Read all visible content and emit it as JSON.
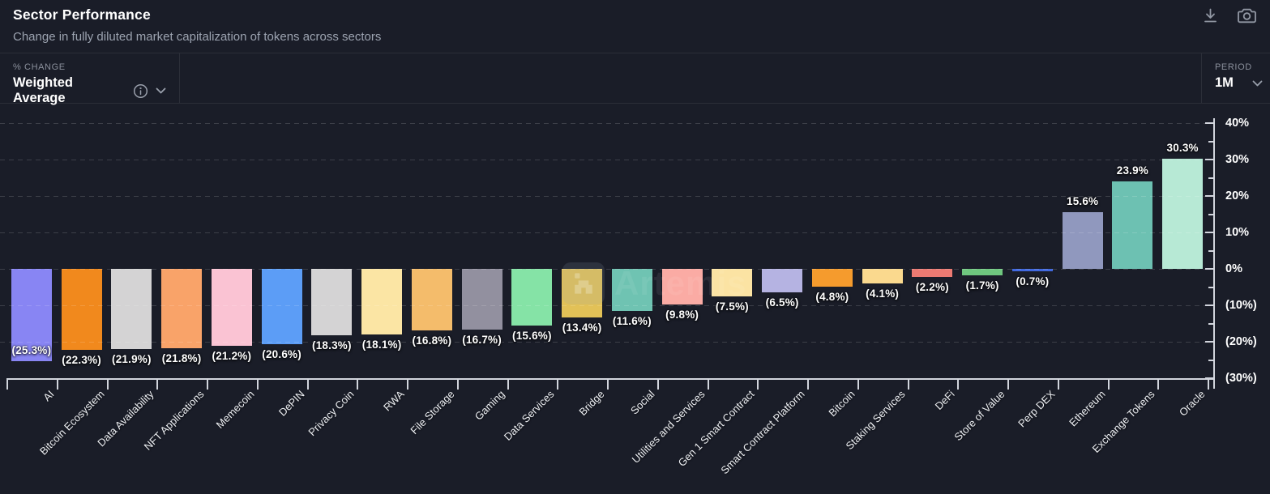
{
  "header": {
    "title": "Sector Performance",
    "subtitle": "Change in fully diluted market capitalization of tokens across sectors",
    "icons": [
      "download-icon",
      "camera-icon"
    ]
  },
  "controls": {
    "metric_label": "% CHANGE",
    "metric_value": "Weighted Average",
    "metric_icons": [
      "info-icon",
      "chevron-down-icon"
    ],
    "period_label": "PERIOD",
    "period_value": "1M",
    "period_icons": [
      "chevron-down-icon"
    ]
  },
  "watermark": {
    "text": "Artemis",
    "logo": "artemis-arch-logo"
  },
  "theme": {
    "background": "#1A1D28",
    "text_primary": "#FFFFFF",
    "text_secondary": "#9CA3B0",
    "border": "rgba(255,255,255,0.08)",
    "axis": "#D2D5DD",
    "gridline_opacity": 0.15
  },
  "chart_data": {
    "type": "bar",
    "title": "Sector Performance",
    "xlabel": "",
    "ylabel": "% change",
    "ylim": [
      -30,
      40
    ],
    "grid": "horizontal-dashed",
    "legend": "none",
    "y_axis_side": "right",
    "y_ticks": [
      {
        "value": 40,
        "label": "40%"
      },
      {
        "value": 30,
        "label": "30%"
      },
      {
        "value": 20,
        "label": "20%"
      },
      {
        "value": 10,
        "label": "10%"
      },
      {
        "value": 0,
        "label": "0%"
      },
      {
        "value": -10,
        "label": "(10%)"
      },
      {
        "value": -20,
        "label": "(20%)"
      },
      {
        "value": -30,
        "label": "(30%)"
      }
    ],
    "y_minor_ticks": [
      35,
      25,
      15,
      5,
      -5,
      -15,
      -25
    ],
    "categories": [
      "AI",
      "Bitcoin Ecosystem",
      "Data Availability",
      "NFT Applications",
      "Memecoin",
      "DePIN",
      "Privacy Coin",
      "RWA",
      "File Storage",
      "Gaming",
      "Data Services",
      "Bridge",
      "Social",
      "Utilities and Services",
      "Gen 1 Smart Contract",
      "Smart Contract Platform",
      "Bitcoin",
      "Staking Services",
      "DeFi",
      "Store of Value",
      "Perp DEX",
      "Ethereum",
      "Exchange Tokens",
      "Oracle"
    ],
    "values": [
      -25.3,
      -22.3,
      -21.9,
      -21.8,
      -21.2,
      -20.6,
      -18.3,
      -18.1,
      -16.8,
      -16.7,
      -15.6,
      -13.4,
      -11.6,
      -9.8,
      -7.5,
      -6.5,
      -4.8,
      -4.1,
      -2.2,
      -1.7,
      -0.7,
      15.6,
      23.9,
      30.3
    ],
    "value_labels": [
      "(25.3%)",
      "(22.3%)",
      "(21.9%)",
      "(21.8%)",
      "(21.2%)",
      "(20.6%)",
      "(18.3%)",
      "(18.1%)",
      "(16.8%)",
      "(16.7%)",
      "(15.6%)",
      "(13.4%)",
      "(11.6%)",
      "(9.8%)",
      "(7.5%)",
      "(6.5%)",
      "(4.8%)",
      "(4.1%)",
      "(2.2%)",
      "(1.7%)",
      "(0.7%)",
      "15.6%",
      "23.9%",
      "30.3%"
    ],
    "bar_colors": [
      "#8885F3",
      "#F1891D",
      "#D4D3D4",
      "#F9A369",
      "#FAC3D3",
      "#5C9DF6",
      "#D4D3D4",
      "#FBE5A4",
      "#F4BC6B",
      "#92909F",
      "#85E3A6",
      "#E2C157",
      "#6FC3B2",
      "#FAABA4",
      "#FBE3A3",
      "#B5B3E2",
      "#F59B2D",
      "#FAD98E",
      "#EC7A72",
      "#6FC77F",
      "#4169E0",
      "#9098BE",
      "#6DC1B2",
      "#B7E9D5"
    ],
    "inside_label_categories": [
      "AI"
    ]
  }
}
